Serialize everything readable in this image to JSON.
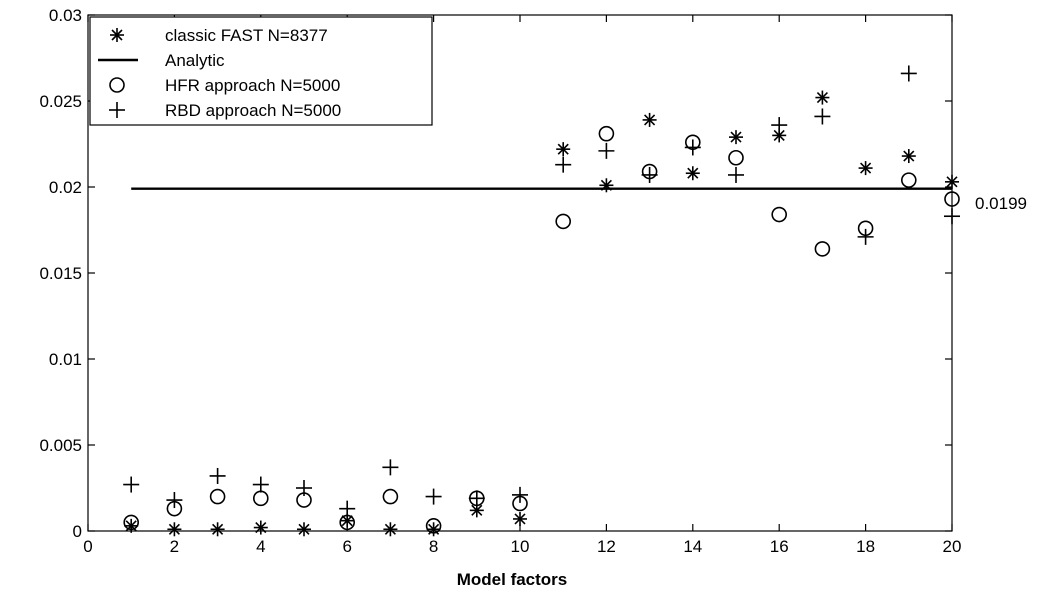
{
  "chart_data": {
    "type": "scatter",
    "xlabel": "Model factors",
    "ylabel": "",
    "xlim": [
      0,
      20
    ],
    "ylim": [
      0,
      0.03
    ],
    "x_ticks": [
      "0",
      "2",
      "4",
      "6",
      "8",
      "10",
      "12",
      "14",
      "16",
      "18",
      "20"
    ],
    "y_ticks": [
      "0",
      "0.005",
      "0.01",
      "0.015",
      "0.02",
      "0.025",
      "0.03"
    ],
    "grid": false,
    "legend_position": "top-left",
    "series": [
      {
        "name": "classic FAST N=8377",
        "marker": "asterisk",
        "x": [
          1,
          2,
          3,
          4,
          5,
          6,
          7,
          8,
          9,
          10,
          11,
          12,
          13,
          14,
          15,
          16,
          17,
          18,
          19,
          20
        ],
        "y": [
          0.0003,
          0.0001,
          0.0001,
          0.0002,
          0.0001,
          0.0006,
          0.0001,
          0.0001,
          0.0012,
          0.0007,
          0.0222,
          0.0201,
          0.0239,
          0.0208,
          0.0229,
          0.023,
          0.0252,
          0.0211,
          0.0218,
          0.0203
        ]
      },
      {
        "name": "Analytic",
        "marker": "line",
        "x": [
          1,
          20
        ],
        "y": [
          0.0199,
          0.0199
        ]
      },
      {
        "name": "HFR approach N=5000",
        "marker": "circle",
        "x": [
          1,
          2,
          3,
          4,
          5,
          6,
          7,
          8,
          9,
          10,
          11,
          12,
          13,
          14,
          15,
          16,
          17,
          18,
          19,
          20
        ],
        "y": [
          0.0005,
          0.0013,
          0.002,
          0.0019,
          0.0018,
          0.0005,
          0.002,
          0.0003,
          0.0019,
          0.0016,
          0.018,
          0.0231,
          0.0209,
          0.0226,
          0.0217,
          0.0184,
          0.0164,
          0.0176,
          0.0204,
          0.0193
        ]
      },
      {
        "name": "RBD approach N=5000",
        "marker": "plus",
        "x": [
          1,
          2,
          3,
          4,
          5,
          6,
          7,
          8,
          9,
          10,
          11,
          12,
          13,
          14,
          15,
          16,
          17,
          18,
          19,
          20
        ],
        "y": [
          0.0027,
          0.0018,
          0.0032,
          0.0027,
          0.0025,
          0.0013,
          0.0037,
          0.002,
          0.0019,
          0.0021,
          0.0213,
          0.0221,
          0.0207,
          0.0223,
          0.0207,
          0.0236,
          0.0241,
          0.0171,
          0.0266,
          0.0183
        ]
      }
    ],
    "annotation": "0.0199"
  }
}
